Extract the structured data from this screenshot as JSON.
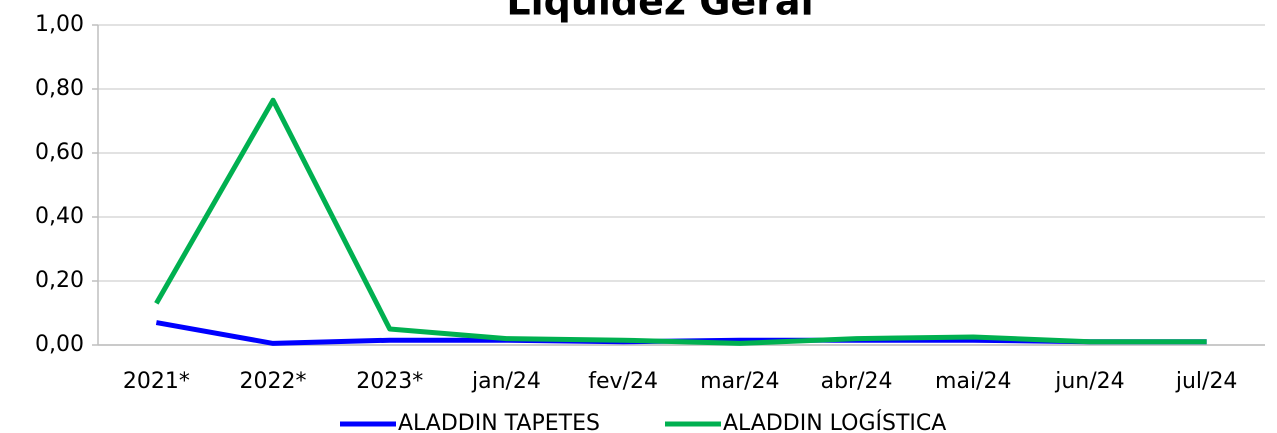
{
  "chart_data": {
    "type": "line",
    "title": "Liquidez Geral",
    "categories": [
      "2021*",
      "2022*",
      "2023*",
      "jan/24",
      "fev/24",
      "mar/24",
      "abr/24",
      "mai/24",
      "jun/24",
      "jul/24"
    ],
    "series": [
      {
        "name": "ALADDIN TAPETES",
        "color": "#0000ff",
        "values": [
          0.07,
          0.005,
          0.015,
          0.015,
          0.01,
          0.015,
          0.015,
          0.015,
          0.01,
          0.01
        ]
      },
      {
        "name": "ALADDIN LOGÍSTICA",
        "color": "#00b050",
        "values": [
          0.13,
          0.765,
          0.05,
          0.02,
          0.015,
          0.005,
          0.02,
          0.025,
          0.01,
          0.01
        ]
      }
    ],
    "ylim": [
      0,
      1
    ],
    "yticks": [
      {
        "value": 0,
        "label": "0,00"
      },
      {
        "value": 0.2,
        "label": "0,20"
      },
      {
        "value": 0.4,
        "label": "0,40"
      },
      {
        "value": 0.6,
        "label": "0,60"
      },
      {
        "value": 0.8,
        "label": "0,80"
      },
      {
        "value": 1,
        "label": "1,00"
      }
    ],
    "grid": true,
    "legend": "bottom"
  }
}
